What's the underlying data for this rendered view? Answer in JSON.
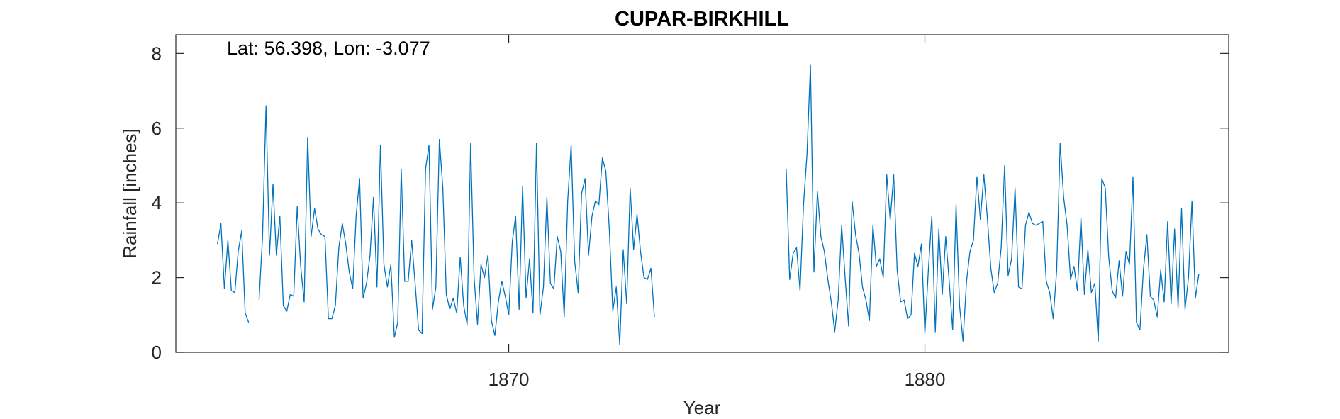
{
  "chart_data": {
    "type": "line",
    "title": "CUPAR-BIRKHILL",
    "annotation": "Lat: 56.398, Lon: -3.077",
    "xlabel": "Year",
    "ylabel": "Rainfall [inches]",
    "xlim": [
      1862.0,
      1887.3
    ],
    "ylim": [
      0,
      8.5
    ],
    "xticks": [
      1870,
      1880
    ],
    "xtick_labels": [
      "1870",
      "1880"
    ],
    "yticks": [
      0,
      2,
      4,
      6,
      8
    ],
    "ytick_labels": [
      "0",
      "2",
      "4",
      "6",
      "8"
    ],
    "grid": false,
    "line_color": "#0072bd",
    "series": [
      {
        "start": "1863-01",
        "values": [
          2.9,
          3.45,
          1.7,
          3.0,
          1.65,
          1.6,
          2.7,
          3.25,
          1.05,
          0.8,
          null,
          null,
          1.4,
          3.1,
          6.6,
          2.6,
          4.5,
          2.6,
          3.65,
          1.25,
          1.1,
          1.55,
          1.5,
          3.9,
          2.3,
          1.35,
          5.75,
          3.1,
          3.85,
          3.3,
          3.15,
          3.1,
          0.9,
          0.9,
          1.25,
          2.8,
          3.45,
          2.9,
          2.15,
          1.7,
          3.65,
          4.65,
          1.45,
          1.85,
          2.6,
          4.15,
          1.75,
          5.55,
          2.35,
          1.75,
          2.35,
          0.4,
          0.8,
          4.9,
          1.9,
          1.9,
          3.0,
          1.85,
          0.6,
          0.5,
          4.9,
          5.55,
          1.15,
          1.75,
          5.7,
          4.4,
          1.55,
          1.15,
          1.45,
          1.05,
          2.55,
          1.25,
          0.75,
          5.6,
          2.0,
          0.75,
          2.35,
          2.0,
          2.6,
          0.85,
          0.45,
          1.35,
          1.9,
          1.5,
          1.0,
          2.95,
          3.65,
          1.15,
          4.45,
          1.45,
          2.5,
          1.05,
          5.6,
          1.0,
          1.75,
          4.15,
          1.85,
          1.7,
          3.1,
          2.7,
          0.95,
          4.05,
          5.55,
          2.45,
          1.6,
          4.25,
          4.65,
          2.6,
          3.65,
          4.05,
          3.95,
          5.2,
          4.85,
          3.3,
          1.1,
          1.75,
          0.2,
          2.75,
          1.3,
          4.4,
          2.75,
          3.7,
          2.7,
          2.0,
          1.95,
          2.25,
          0.95
        ]
      },
      {
        "start": "1876-09",
        "values": [
          4.9,
          1.95,
          2.65,
          2.8,
          1.65,
          3.95,
          5.3,
          7.7,
          2.15,
          4.3,
          3.1,
          2.7,
          1.95,
          1.35,
          0.55,
          1.4,
          3.4,
          2.0,
          0.7,
          4.05,
          3.15,
          2.65,
          1.75,
          1.4,
          0.85,
          3.4,
          2.3,
          2.5,
          2.0,
          4.75,
          3.55,
          4.75,
          2.2,
          1.35,
          1.4,
          0.9,
          1.0,
          2.65,
          2.3,
          2.9,
          0.5,
          2.2,
          3.65,
          0.55,
          3.3,
          1.55,
          3.1,
          1.9,
          0.6,
          3.95,
          1.25,
          0.3,
          1.9,
          2.7,
          3.0,
          4.7,
          3.55,
          4.75,
          3.6,
          2.25,
          1.6,
          1.85,
          2.8,
          5.0,
          2.05,
          2.5,
          4.4,
          1.75,
          1.7,
          3.4,
          3.75,
          3.45,
          3.4,
          3.45,
          3.5,
          1.9,
          1.6,
          0.9,
          2.2,
          5.6,
          4.15,
          3.4,
          1.95,
          2.3,
          1.65,
          3.6,
          1.55,
          2.75,
          1.6,
          1.85,
          0.3,
          4.65,
          4.4,
          2.55,
          1.65,
          1.45,
          2.45,
          1.5,
          2.7,
          2.35,
          4.7,
          0.8,
          0.6,
          2.2,
          3.15,
          1.5,
          1.4,
          0.95,
          2.2,
          1.35,
          3.5,
          1.3,
          3.3,
          1.2,
          3.85,
          1.15,
          2.0,
          4.05,
          1.45,
          2.1
        ]
      }
    ]
  }
}
